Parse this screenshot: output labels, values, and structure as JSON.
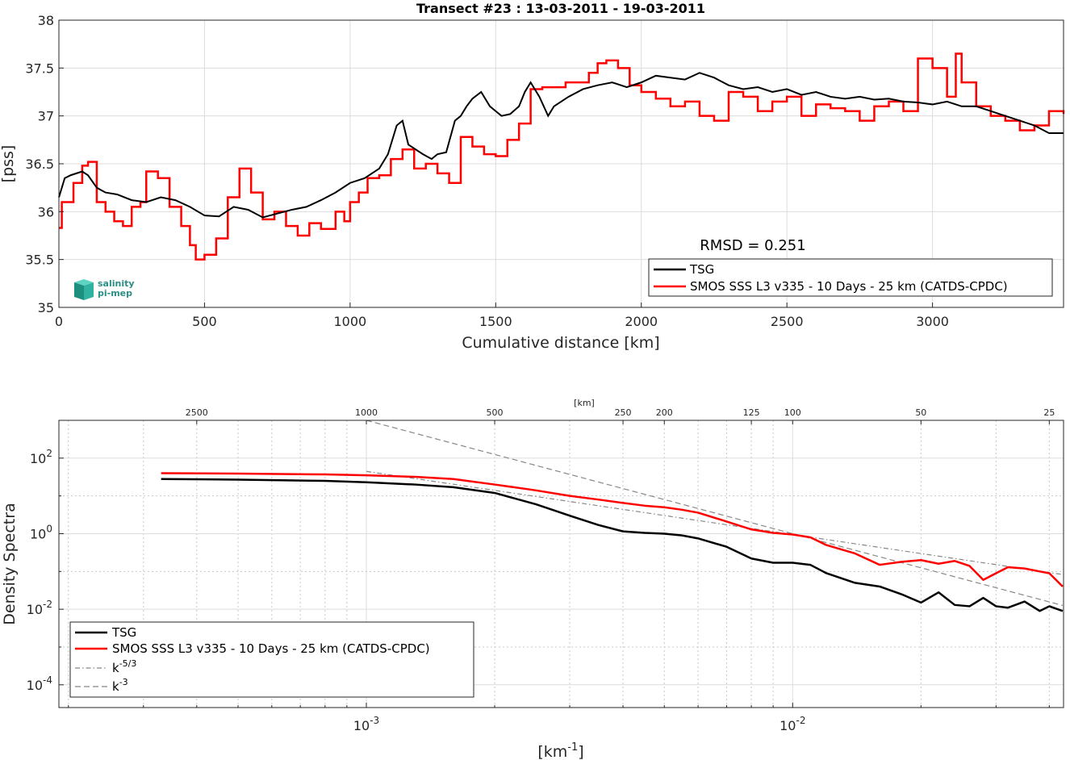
{
  "colors": {
    "tsg": "#000000",
    "smos": "#ff0000",
    "ref": "#888888",
    "logo": "#2a9d8f"
  },
  "logo": {
    "line1": "salinity",
    "line2": "pi-mep"
  },
  "chart_data": [
    {
      "type": "line",
      "title": "Transect #23 : 13-03-2011 - 19-03-2011",
      "xlabel": "Cumulative distance [km]",
      "ylabel": "[pss]",
      "xlim": [
        0,
        3450
      ],
      "ylim": [
        35,
        38
      ],
      "xticks": [
        0,
        500,
        1000,
        1500,
        2000,
        2500,
        3000
      ],
      "yticks": [
        35,
        35.5,
        36,
        36.5,
        37,
        37.5,
        38
      ],
      "annotation": "RMSD = 0.251",
      "legend_position": "bottom-right",
      "grid": true,
      "series": [
        {
          "name": "TSG",
          "x": [
            0,
            20,
            40,
            60,
            80,
            100,
            130,
            160,
            200,
            250,
            300,
            350,
            400,
            450,
            500,
            550,
            600,
            650,
            700,
            750,
            800,
            850,
            900,
            950,
            1000,
            1050,
            1100,
            1130,
            1160,
            1180,
            1200,
            1250,
            1280,
            1300,
            1330,
            1360,
            1380,
            1400,
            1420,
            1450,
            1480,
            1500,
            1520,
            1550,
            1580,
            1600,
            1620,
            1650,
            1680,
            1700,
            1750,
            1800,
            1850,
            1900,
            1950,
            2000,
            2050,
            2100,
            2150,
            2200,
            2250,
            2300,
            2350,
            2400,
            2450,
            2500,
            2550,
            2600,
            2650,
            2700,
            2750,
            2800,
            2850,
            2900,
            2950,
            3000,
            3050,
            3100,
            3150,
            3200,
            3250,
            3300,
            3350,
            3400,
            3450
          ],
          "y": [
            36.15,
            36.35,
            36.38,
            36.4,
            36.42,
            36.38,
            36.25,
            36.2,
            36.18,
            36.12,
            36.1,
            36.15,
            36.12,
            36.05,
            35.96,
            35.95,
            36.05,
            36.02,
            35.94,
            35.98,
            36.02,
            36.05,
            36.12,
            36.2,
            36.3,
            36.35,
            36.45,
            36.6,
            36.9,
            36.95,
            36.7,
            36.6,
            36.55,
            36.6,
            36.62,
            36.95,
            37.0,
            37.1,
            37.18,
            37.25,
            37.1,
            37.05,
            37.0,
            37.02,
            37.1,
            37.25,
            37.35,
            37.2,
            37.0,
            37.1,
            37.2,
            37.28,
            37.32,
            37.35,
            37.3,
            37.35,
            37.42,
            37.4,
            37.38,
            37.45,
            37.4,
            37.32,
            37.28,
            37.3,
            37.25,
            37.28,
            37.22,
            37.25,
            37.2,
            37.18,
            37.2,
            37.17,
            37.18,
            37.15,
            37.14,
            37.12,
            37.15,
            37.1,
            37.1,
            37.05,
            37.0,
            36.95,
            36.9,
            36.82,
            36.82
          ]
        },
        {
          "name": "SMOS SSS L3 v335 - 10 Days - 25 km (CATDS-CPDC)",
          "x": [
            0,
            10,
            50,
            80,
            100,
            130,
            160,
            190,
            220,
            250,
            280,
            300,
            340,
            380,
            420,
            450,
            470,
            500,
            540,
            580,
            620,
            660,
            700,
            740,
            780,
            820,
            860,
            900,
            950,
            980,
            1000,
            1030,
            1060,
            1100,
            1140,
            1180,
            1220,
            1260,
            1300,
            1340,
            1380,
            1420,
            1460,
            1500,
            1540,
            1580,
            1620,
            1660,
            1700,
            1740,
            1780,
            1820,
            1850,
            1880,
            1920,
            1960,
            2000,
            2050,
            2100,
            2150,
            2200,
            2250,
            2300,
            2350,
            2400,
            2450,
            2500,
            2550,
            2600,
            2650,
            2700,
            2750,
            2800,
            2850,
            2900,
            2950,
            3000,
            3050,
            3080,
            3100,
            3150,
            3200,
            3250,
            3300,
            3350,
            3400,
            3450
          ],
          "y": [
            35.83,
            36.1,
            36.3,
            36.48,
            36.52,
            36.1,
            36.0,
            35.9,
            35.85,
            36.05,
            36.1,
            36.42,
            36.35,
            36.05,
            35.85,
            35.65,
            35.5,
            35.55,
            35.72,
            36.15,
            36.45,
            36.2,
            35.92,
            36.0,
            35.85,
            35.75,
            35.88,
            35.82,
            36.0,
            35.9,
            36.1,
            36.2,
            36.35,
            36.38,
            36.55,
            36.65,
            36.45,
            36.5,
            36.4,
            36.3,
            36.78,
            36.68,
            36.6,
            36.58,
            36.75,
            36.92,
            37.28,
            37.3,
            37.3,
            37.35,
            37.35,
            37.45,
            37.55,
            37.58,
            37.5,
            37.32,
            37.25,
            37.18,
            37.1,
            37.15,
            37.0,
            36.95,
            37.25,
            37.2,
            37.05,
            37.15,
            37.2,
            37.0,
            37.12,
            37.08,
            37.05,
            36.95,
            37.1,
            37.15,
            37.05,
            37.6,
            37.5,
            37.2,
            37.65,
            37.35,
            37.1,
            37.0,
            36.95,
            36.85,
            36.9,
            37.05,
            37.02
          ]
        }
      ]
    },
    {
      "type": "line",
      "title": "",
      "xlabel": "[km",
      "xlabel_sup": "-1",
      "xlabel_close": "]",
      "top_xlabel": "[km]",
      "ylabel": "Density Spectra",
      "xscale": "log",
      "yscale": "log",
      "xlim": [
        0.00019,
        0.0432
      ],
      "ylim": [
        2.5e-05,
        1000
      ],
      "xticks": [
        {
          "base": "10",
          "exp": "-3"
        },
        {
          "base": "10",
          "exp": "-2"
        }
      ],
      "yticks": [
        {
          "base": "10",
          "exp": "2"
        },
        {
          "base": "10",
          "exp": "0"
        },
        {
          "base": "10",
          "exp": "-2"
        },
        {
          "base": "10",
          "exp": "-4"
        }
      ],
      "top_ticks_km": [
        "2500",
        "1000",
        "500",
        "250",
        "200",
        "125",
        "100",
        "50",
        "25"
      ],
      "legend_position": "bottom-left",
      "grid": true,
      "series": [
        {
          "name": "TSG",
          "x": [
            0.00033,
            0.0005,
            0.0008,
            0.001,
            0.0013,
            0.0016,
            0.002,
            0.0025,
            0.003,
            0.0035,
            0.004,
            0.0045,
            0.005,
            0.0055,
            0.006,
            0.007,
            0.008,
            0.009,
            0.01,
            0.011,
            0.012,
            0.014,
            0.016,
            0.018,
            0.02,
            0.022,
            0.024,
            0.026,
            0.028,
            0.03,
            0.032,
            0.035,
            0.038,
            0.04,
            0.043
          ],
          "y": [
            28,
            27,
            25,
            23,
            20,
            17,
            12,
            6,
            3,
            1.7,
            1.15,
            1.05,
            1.0,
            0.9,
            0.75,
            0.45,
            0.22,
            0.17,
            0.17,
            0.15,
            0.09,
            0.05,
            0.04,
            0.025,
            0.015,
            0.028,
            0.013,
            0.012,
            0.02,
            0.012,
            0.011,
            0.016,
            0.009,
            0.012,
            0.009
          ]
        },
        {
          "name": "SMOS SSS L3 v335 - 10 Days - 25 km (CATDS-CPDC)",
          "x": [
            0.00033,
            0.0005,
            0.0008,
            0.001,
            0.0013,
            0.0016,
            0.002,
            0.0025,
            0.003,
            0.0035,
            0.004,
            0.0045,
            0.005,
            0.0055,
            0.006,
            0.007,
            0.008,
            0.009,
            0.01,
            0.011,
            0.012,
            0.014,
            0.016,
            0.018,
            0.02,
            0.022,
            0.024,
            0.026,
            0.028,
            0.03,
            0.032,
            0.035,
            0.038,
            0.04,
            0.043
          ],
          "y": [
            40,
            39,
            37,
            35,
            32,
            28,
            20,
            14,
            10,
            8,
            6.5,
            5.5,
            5,
            4.3,
            3.6,
            2.1,
            1.3,
            1.05,
            0.95,
            0.8,
            0.5,
            0.3,
            0.15,
            0.18,
            0.2,
            0.16,
            0.19,
            0.14,
            0.06,
            0.09,
            0.13,
            0.12,
            0.1,
            0.09,
            0.04
          ]
        },
        {
          "name": "k-5/3",
          "x": [
            0.001,
            0.043
          ],
          "y": [
            44.6,
            0.083
          ]
        },
        {
          "name": "k-3",
          "x": [
            0.001,
            0.043
          ],
          "y": [
            1000,
            0.0126
          ]
        }
      ],
      "legend_entries": [
        {
          "text": "TSG"
        },
        {
          "text": "SMOS SSS L3 v335 - 10 Days - 25 km (CATDS-CPDC)"
        },
        {
          "text": "k",
          "sup": "-5/3"
        },
        {
          "text": "k",
          "sup": "-3"
        }
      ]
    }
  ]
}
